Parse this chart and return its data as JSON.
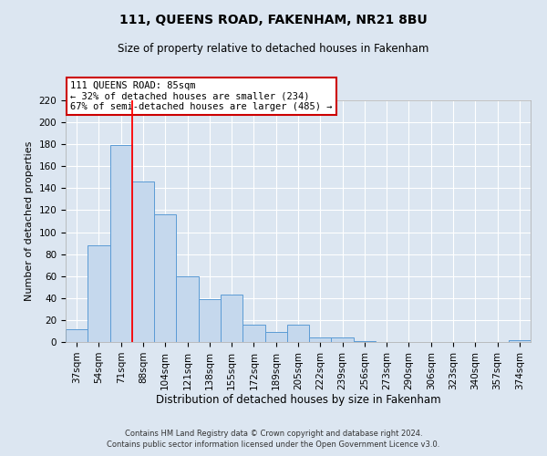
{
  "title": "111, QUEENS ROAD, FAKENHAM, NR21 8BU",
  "subtitle": "Size of property relative to detached houses in Fakenham",
  "xlabel": "Distribution of detached houses by size in Fakenham",
  "ylabel": "Number of detached properties",
  "footer_line1": "Contains HM Land Registry data © Crown copyright and database right 2024.",
  "footer_line2": "Contains public sector information licensed under the Open Government Licence v3.0.",
  "bins": [
    "37sqm",
    "54sqm",
    "71sqm",
    "88sqm",
    "104sqm",
    "121sqm",
    "138sqm",
    "155sqm",
    "172sqm",
    "189sqm",
    "205sqm",
    "222sqm",
    "239sqm",
    "256sqm",
    "273sqm",
    "290sqm",
    "306sqm",
    "323sqm",
    "340sqm",
    "357sqm",
    "374sqm"
  ],
  "values": [
    12,
    88,
    179,
    146,
    116,
    60,
    39,
    43,
    16,
    9,
    16,
    4,
    4,
    1,
    0,
    0,
    0,
    0,
    0,
    0,
    2
  ],
  "bar_color": "#c5d8ed",
  "bar_edge_color": "#5b9bd5",
  "red_line_bin_index": 3,
  "annotation_title": "111 QUEENS ROAD: 85sqm",
  "annotation_line1": "← 32% of detached houses are smaller (234)",
  "annotation_line2": "67% of semi-detached houses are larger (485) →",
  "annotation_box_facecolor": "#ffffff",
  "annotation_box_edgecolor": "#cc0000",
  "ylim": [
    0,
    220
  ],
  "yticks": [
    0,
    20,
    40,
    60,
    80,
    100,
    120,
    140,
    160,
    180,
    200,
    220
  ],
  "bg_color": "#dce6f1",
  "plot_bg_color": "#dce6f1",
  "grid_color": "#ffffff",
  "title_fontsize": 10,
  "subtitle_fontsize": 8.5,
  "ylabel_fontsize": 8,
  "xlabel_fontsize": 8.5,
  "tick_fontsize": 7.5,
  "annotation_fontsize": 7.5,
  "footer_fontsize": 6
}
